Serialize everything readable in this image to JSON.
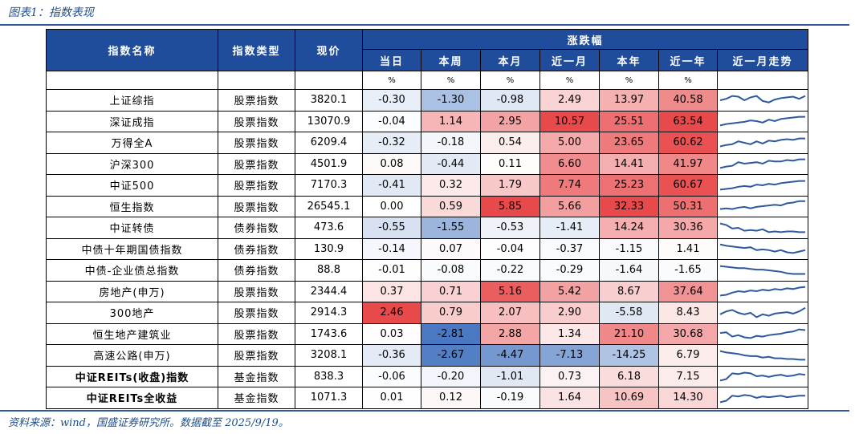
{
  "caption": "图表1：指数表现",
  "source": "资料来源：wind，国盛证券研究所。数据截至 2025/9/19。",
  "header": {
    "name": "指数名称",
    "type": "指数类型",
    "price": "现价",
    "change_group": "涨跌幅",
    "periods": [
      "当日",
      "本周",
      "本月",
      "近一月",
      "本年",
      "近一年",
      "近一月走势"
    ],
    "unit": "%"
  },
  "colors": {
    "header_bg": "#1f4c9b",
    "positive_strong": "#e8494b",
    "negative_strong": "#4a78c2",
    "sparkline": "#2e5a9c"
  },
  "rows": [
    {
      "name": "上证综指",
      "type": "股票指数",
      "price": "3820.1",
      "vals": [
        "-0.30",
        "-1.30",
        "-0.98",
        "2.49",
        "13.97",
        "40.58"
      ],
      "spark": [
        0.5,
        0.4,
        0.2,
        0.25,
        0.5,
        0.3,
        0.2,
        0.55,
        0.65,
        0.45,
        0.35,
        0.3,
        0.25,
        0.4,
        0.2
      ]
    },
    {
      "name": "深证成指",
      "type": "股票指数",
      "price": "13070.9",
      "vals": [
        "-0.04",
        "1.14",
        "2.95",
        "10.57",
        "25.51",
        "63.54"
      ],
      "spark": [
        0.8,
        0.7,
        0.65,
        0.6,
        0.55,
        0.45,
        0.5,
        0.6,
        0.4,
        0.5,
        0.35,
        0.3,
        0.25,
        0.2,
        0.2
      ]
    },
    {
      "name": "万得全A",
      "type": "股票指数",
      "price": "6209.4",
      "vals": [
        "-0.32",
        "-0.18",
        "0.54",
        "5.00",
        "23.65",
        "60.62"
      ],
      "spark": [
        0.75,
        0.65,
        0.6,
        0.4,
        0.5,
        0.6,
        0.4,
        0.55,
        0.35,
        0.4,
        0.3,
        0.25,
        0.3,
        0.2,
        0.2
      ]
    },
    {
      "name": "沪深300",
      "type": "股票指数",
      "price": "4501.9",
      "vals": [
        "0.08",
        "-0.44",
        "0.11",
        "6.60",
        "14.41",
        "41.97"
      ],
      "spark": [
        0.8,
        0.7,
        0.65,
        0.4,
        0.5,
        0.45,
        0.4,
        0.5,
        0.3,
        0.35,
        0.35,
        0.25,
        0.3,
        0.2,
        0.2
      ]
    },
    {
      "name": "中证500",
      "type": "股票指数",
      "price": "7170.3",
      "vals": [
        "-0.41",
        "0.32",
        "1.79",
        "7.74",
        "25.23",
        "60.67"
      ],
      "spark": [
        0.8,
        0.75,
        0.7,
        0.6,
        0.55,
        0.6,
        0.45,
        0.5,
        0.4,
        0.45,
        0.35,
        0.3,
        0.25,
        0.2,
        0.2
      ]
    },
    {
      "name": "恒生指数",
      "type": "股票指数",
      "price": "26545.1",
      "vals": [
        "0.00",
        "0.59",
        "5.85",
        "5.66",
        "32.33",
        "50.31"
      ],
      "spark": [
        0.7,
        0.65,
        0.7,
        0.6,
        0.55,
        0.65,
        0.55,
        0.5,
        0.45,
        0.4,
        0.45,
        0.3,
        0.25,
        0.15,
        0.15
      ]
    },
    {
      "name": "中证转债",
      "type": "债券指数",
      "price": "473.6",
      "vals": [
        "-0.55",
        "-1.55",
        "-0.53",
        "-1.41",
        "14.24",
        "30.36"
      ],
      "spark": [
        0.2,
        0.3,
        0.55,
        0.5,
        0.7,
        0.65,
        0.7,
        0.6,
        0.8,
        0.75,
        0.8,
        0.75,
        0.75,
        0.8,
        0.8
      ]
    },
    {
      "name": "中债十年期国债指数",
      "type": "债券指数",
      "price": "130.9",
      "vals": [
        "-0.14",
        "0.07",
        "-0.04",
        "-0.37",
        "-1.15",
        "1.41"
      ],
      "spark": [
        0.2,
        0.3,
        0.35,
        0.4,
        0.45,
        0.4,
        0.6,
        0.55,
        0.6,
        0.7,
        0.6,
        0.75,
        0.8,
        0.7,
        0.6
      ]
    },
    {
      "name": "中债-企业债总指数",
      "type": "债券指数",
      "price": "88.8",
      "vals": [
        "-0.01",
        "-0.08",
        "-0.22",
        "-0.29",
        "-1.64",
        "-1.65"
      ],
      "spark": [
        0.2,
        0.25,
        0.3,
        0.35,
        0.35,
        0.4,
        0.45,
        0.45,
        0.5,
        0.55,
        0.6,
        0.7,
        0.75,
        0.75,
        0.75
      ]
    },
    {
      "name": "房地产(申万)",
      "type": "股票指数",
      "price": "2344.4",
      "vals": [
        "0.37",
        "0.71",
        "5.16",
        "5.42",
        "8.67",
        "37.64"
      ],
      "spark": [
        0.8,
        0.75,
        0.6,
        0.5,
        0.55,
        0.45,
        0.5,
        0.4,
        0.45,
        0.35,
        0.4,
        0.3,
        0.35,
        0.25,
        0.2
      ]
    },
    {
      "name": "300地产",
      "type": "股票指数",
      "price": "2914.3",
      "vals": [
        "2.46",
        "0.79",
        "2.07",
        "2.90",
        "-5.58",
        "8.43"
      ],
      "spark": [
        0.6,
        0.4,
        0.3,
        0.5,
        0.6,
        0.5,
        0.8,
        0.6,
        0.7,
        0.55,
        0.5,
        0.45,
        0.55,
        0.4,
        0.15
      ]
    },
    {
      "name": "恒生地产建筑业",
      "type": "股票指数",
      "price": "1743.6",
      "vals": [
        "0.03",
        "-2.81",
        "2.88",
        "1.34",
        "21.10",
        "30.68"
      ],
      "spark": [
        0.45,
        0.4,
        0.7,
        0.6,
        0.75,
        0.8,
        0.65,
        0.7,
        0.6,
        0.55,
        0.5,
        0.4,
        0.35,
        0.2,
        0.25
      ]
    },
    {
      "name": "高速公路(申万)",
      "type": "股票指数",
      "price": "3208.1",
      "vals": [
        "-0.36",
        "-2.67",
        "-4.47",
        "-7.13",
        "-14.25",
        "6.79"
      ],
      "spark": [
        0.2,
        0.3,
        0.35,
        0.4,
        0.5,
        0.55,
        0.55,
        0.65,
        0.6,
        0.7,
        0.7,
        0.75,
        0.75,
        0.8,
        0.8
      ]
    },
    {
      "name": "中证REITs(收盘)指数",
      "type": "基金指数",
      "price": "838.3",
      "vals": [
        "-0.06",
        "-0.20",
        "-1.01",
        "0.73",
        "6.18",
        "7.15"
      ],
      "spark": [
        0.8,
        0.7,
        0.3,
        0.35,
        0.25,
        0.3,
        0.5,
        0.45,
        0.55,
        0.45,
        0.4,
        0.5,
        0.45,
        0.35,
        0.4
      ]
    },
    {
      "name": "中证REITs全收益",
      "type": "基金指数",
      "price": "1071.3",
      "vals": [
        "0.01",
        "0.12",
        "-0.19",
        "1.64",
        "10.69",
        "14.30"
      ],
      "spark": [
        0.8,
        0.7,
        0.35,
        0.4,
        0.3,
        0.35,
        0.5,
        0.4,
        0.45,
        0.4,
        0.35,
        0.45,
        0.4,
        0.35,
        0.35
      ]
    }
  ]
}
